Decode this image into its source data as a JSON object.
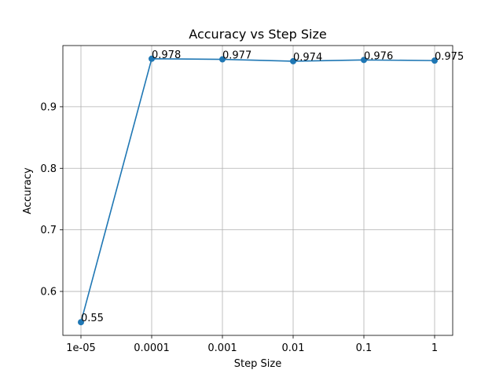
{
  "chart_data": {
    "type": "line",
    "title": "Accuracy vs Step Size",
    "xlabel": "Step Size",
    "ylabel": "Accuracy",
    "x_scale": "log",
    "categories": [
      "1e-05",
      "0.0001",
      "0.001",
      "0.01",
      "0.1",
      "1"
    ],
    "series": [
      {
        "values": [
          0.55,
          0.978,
          0.977,
          0.974,
          0.976,
          0.975
        ],
        "labels": [
          "0.55",
          "0.978",
          "0.977",
          "0.974",
          "0.976",
          "0.975"
        ],
        "color": "#1f77b4",
        "marker": "circle"
      }
    ],
    "ylim": [
      0.5286,
      0.9994
    ],
    "yticks": [
      0.6,
      0.7,
      0.8,
      0.9
    ],
    "ytick_labels": [
      "0.6",
      "0.7",
      "0.8",
      "0.9"
    ],
    "grid": true,
    "legend": "none"
  }
}
